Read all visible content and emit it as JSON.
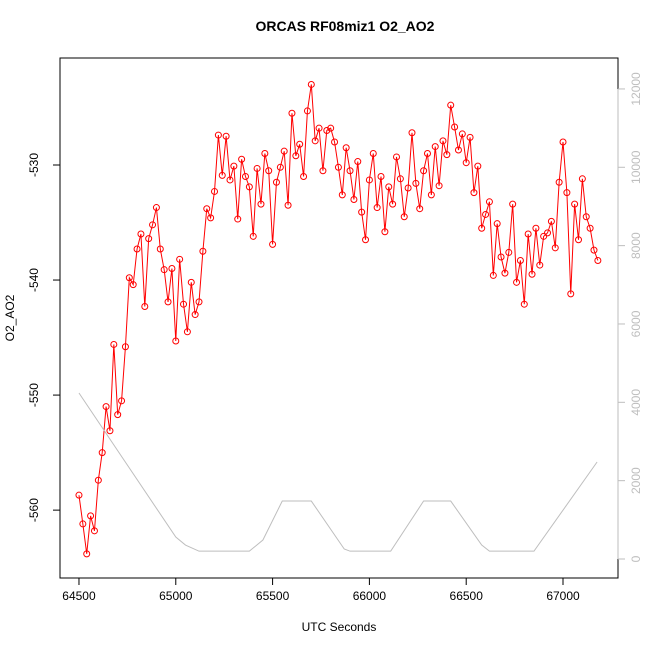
{
  "chart_data": {
    "type": "line",
    "title": "ORCAS RF08miz1 O2_AO2",
    "x_label": "UTC Seconds",
    "y_label": "O2_AO2",
    "xlim": [
      64402,
      67284
    ],
    "ylim": [
      -565.9,
      -520.7
    ],
    "y2lim": [
      -485,
      12790
    ],
    "xticks": [
      64500,
      65000,
      65500,
      66000,
      66500,
      67000
    ],
    "yticks": [
      -560,
      -550,
      -540,
      -530
    ],
    "y2ticks": [
      0,
      2000,
      4000,
      6000,
      8000,
      10000,
      12000
    ],
    "series": [
      {
        "color": "#ff0000",
        "markers": true,
        "x": [
          64500,
          64520,
          64540,
          64560,
          64580,
          64600,
          64620,
          64640,
          64660,
          64680,
          64700,
          64720,
          64740,
          64760,
          64780,
          64800,
          64820,
          64840,
          64860,
          64880,
          64900,
          64920,
          64940,
          64960,
          64980,
          65000,
          65020,
          65040,
          65060,
          65080,
          65100,
          65120,
          65140,
          65160,
          65180,
          65200,
          65220,
          65240,
          65260,
          65280,
          65300,
          65320,
          65340,
          65360,
          65380,
          65400,
          65420,
          65440,
          65460,
          65480,
          65500,
          65520,
          65540,
          65560,
          65580,
          65600,
          65620,
          65640,
          65660,
          65680,
          65700,
          65720,
          65740,
          65760,
          65780,
          65800,
          65820,
          65840,
          65860,
          65880,
          65900,
          65920,
          65940,
          65960,
          65980,
          66000,
          66020,
          66040,
          66060,
          66080,
          66100,
          66120,
          66140,
          66160,
          66180,
          66200,
          66220,
          66240,
          66260,
          66280,
          66300,
          66320,
          66340,
          66360,
          66380,
          66400,
          66420,
          66440,
          66460,
          66480,
          66500,
          66520,
          66540,
          66560,
          66580,
          66600,
          66620,
          66640,
          66660,
          66680,
          66700,
          66720,
          66740,
          66760,
          66780,
          66800,
          66820,
          66840,
          66860,
          66880,
          66900,
          66920,
          66940,
          66960,
          66980,
          67000,
          67020,
          67040,
          67060,
          67080,
          67100,
          67120,
          67140,
          67160,
          67180
        ],
        "values": [
          -558.7,
          -561.2,
          -563.8,
          -560.5,
          -561.8,
          -557.4,
          -555.0,
          -551.0,
          -553.1,
          -545.6,
          -551.7,
          -550.5,
          -545.8,
          -539.8,
          -540.4,
          -537.3,
          -536.0,
          -542.3,
          -536.4,
          -535.2,
          -533.7,
          -537.3,
          -539.1,
          -541.9,
          -539.0,
          -545.3,
          -538.2,
          -542.1,
          -544.5,
          -540.2,
          -543.0,
          -541.9,
          -537.5,
          -533.8,
          -534.6,
          -532.3,
          -527.4,
          -530.9,
          -527.5,
          -531.3,
          -530.1,
          -534.7,
          -529.5,
          -531.0,
          -531.9,
          -536.2,
          -530.3,
          -533.4,
          -529.0,
          -530.5,
          -536.9,
          -531.5,
          -530.2,
          -528.8,
          -533.5,
          -525.5,
          -529.2,
          -528.2,
          -531.0,
          -525.3,
          -523.0,
          -527.9,
          -526.8,
          -530.5,
          -527.0,
          -526.8,
          -528.0,
          -530.2,
          -532.6,
          -528.5,
          -530.5,
          -533.0,
          -529.7,
          -534.1,
          -536.5,
          -531.3,
          -529.0,
          -533.7,
          -531.0,
          -535.8,
          -531.9,
          -533.4,
          -529.3,
          -531.2,
          -534.5,
          -532.0,
          -527.2,
          -531.6,
          -533.8,
          -530.5,
          -529.0,
          -532.6,
          -528.4,
          -531.8,
          -527.9,
          -529.1,
          -524.8,
          -526.7,
          -528.7,
          -527.3,
          -529.8,
          -527.6,
          -532.4,
          -530.1,
          -535.5,
          -534.3,
          -533.2,
          -539.6,
          -535.1,
          -538.0,
          -539.4,
          -537.6,
          -533.4,
          -540.2,
          -538.3,
          -542.1,
          -536.0,
          -539.5,
          -535.5,
          -538.7,
          -536.2,
          -535.9,
          -534.9,
          -537.2,
          -531.5,
          -528.0,
          -532.4,
          -541.2,
          -533.4,
          -536.5,
          -531.2,
          -534.5,
          -535.5,
          -537.4,
          -538.3
        ]
      },
      {
        "color": "#bebebe",
        "axis": "y2",
        "markers": false,
        "x": [
          64500,
          65000,
          65050,
          65120,
          65380,
          65450,
          65550,
          65700,
          65870,
          65900,
          66110,
          66280,
          66420,
          66580,
          66620,
          66850,
          67176
        ],
        "values": [
          4238,
          560,
          357,
          200,
          200,
          485,
          1480,
          1480,
          255,
          200,
          200,
          1480,
          1480,
          357,
          200,
          200,
          2476
        ]
      }
    ]
  }
}
